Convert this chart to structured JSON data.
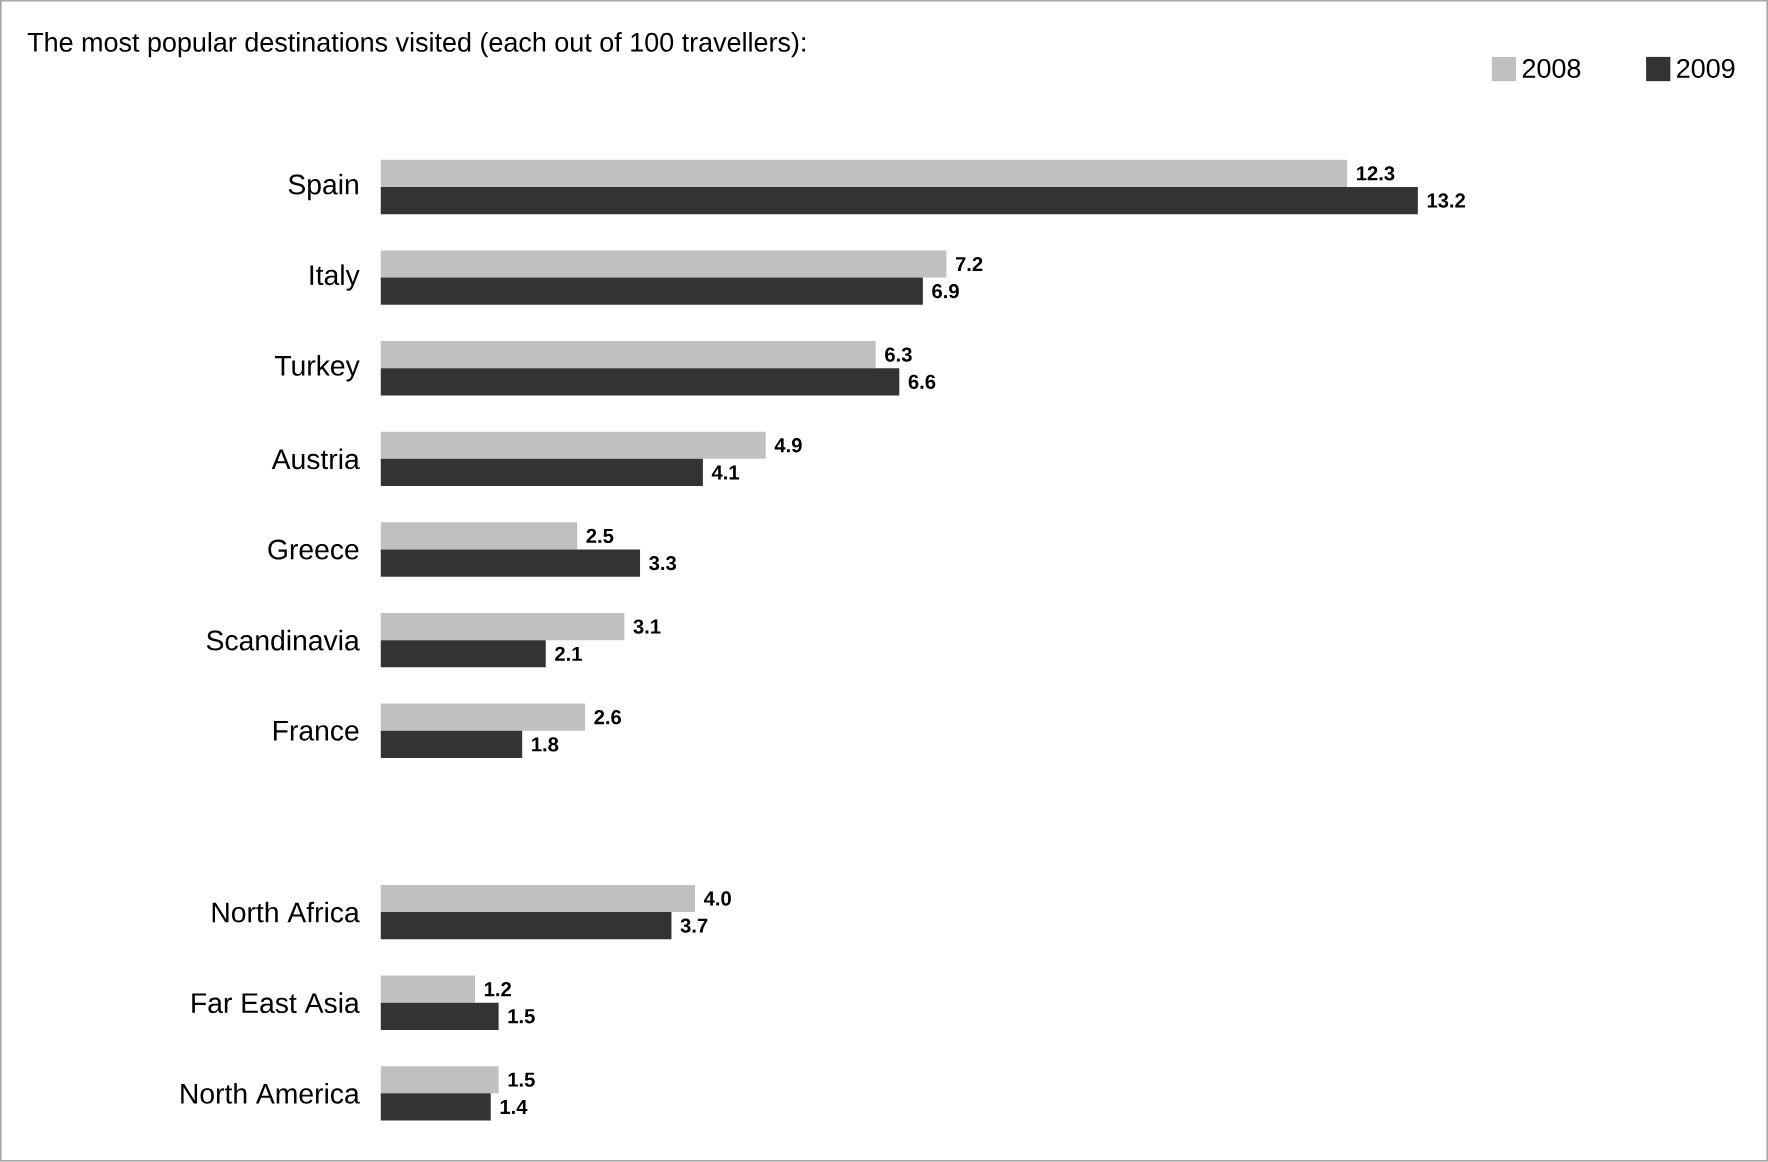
{
  "chart_data": {
    "type": "bar",
    "orientation": "horizontal",
    "title": "The most popular destinations visited (each out of 100 travellers):",
    "legend": "top right",
    "categories": [
      "Spain",
      "Italy",
      "Turkey",
      "Austria",
      "Greece",
      "Scandinavia",
      "France",
      null,
      "North Africa",
      "Far East Asia",
      "North America"
    ],
    "series": [
      {
        "name": "2008",
        "color": "#c0c0c0",
        "values": [
          12.3,
          7.2,
          6.3,
          4.9,
          2.5,
          3.1,
          2.6,
          null,
          4.0,
          1.2,
          1.5
        ],
        "value_labels": [
          "12.3",
          "7.2",
          "6.3",
          "4.9",
          "2.5",
          "3.1",
          "2.6",
          null,
          "4.0",
          "1.2",
          "1.5"
        ]
      },
      {
        "name": "2009",
        "color": "#333333",
        "values": [
          13.2,
          6.9,
          6.6,
          4.1,
          3.3,
          2.1,
          1.8,
          null,
          3.7,
          1.5,
          1.4
        ],
        "value_labels": [
          "13.2",
          "6.9",
          "6.6",
          "4.1",
          "3.3",
          "2.1",
          "1.8",
          null,
          "3.7",
          "1.5",
          "1.4"
        ]
      }
    ]
  }
}
